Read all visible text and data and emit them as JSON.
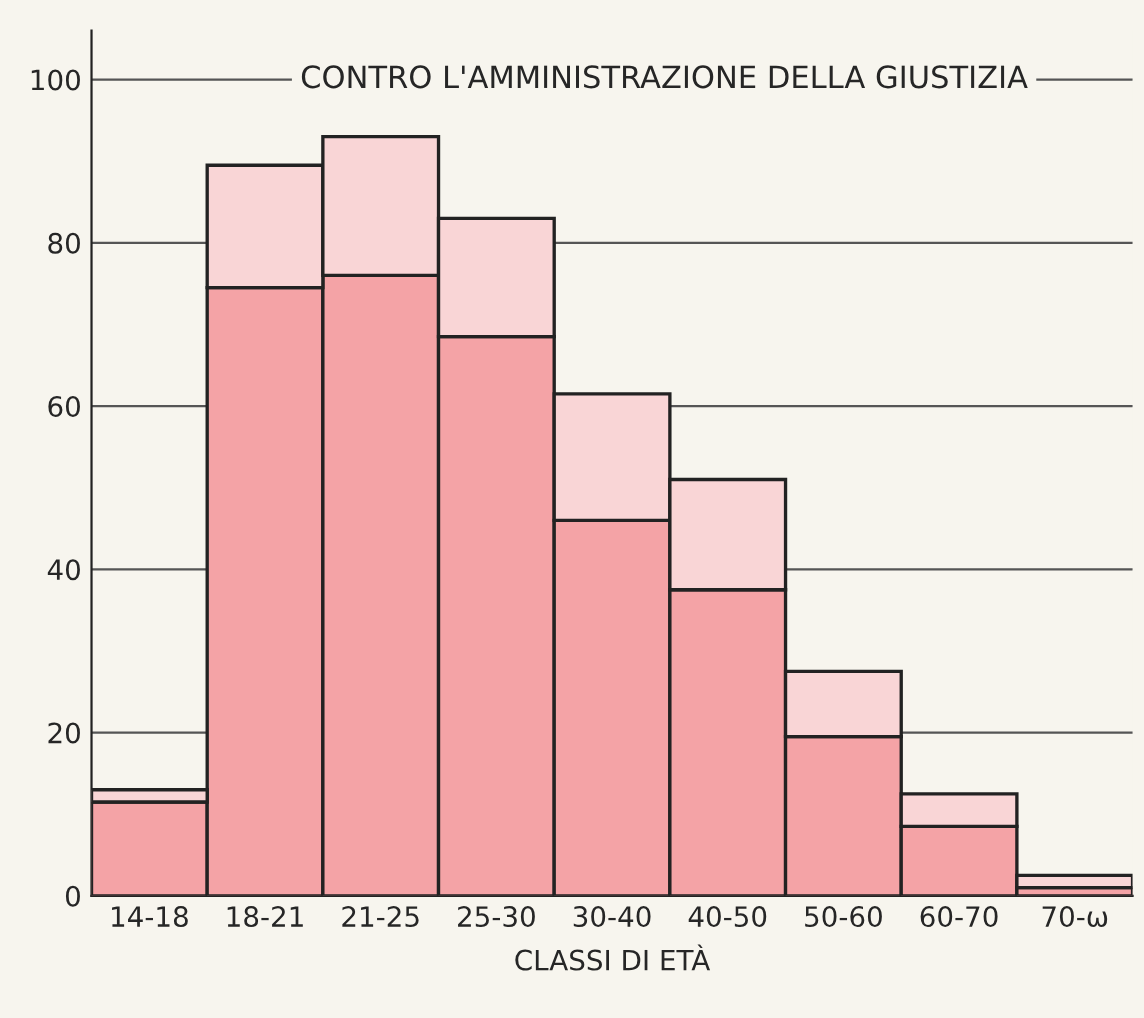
{
  "chart_data": {
    "type": "bar",
    "title": "CONTRO L'AMMINISTRAZIONE DELLA GIUSTIZIA",
    "xlabel": "CLASSI DI ETÀ",
    "categories": [
      "14-18",
      "18-21",
      "21-25",
      "25-30",
      "30-40",
      "40-50",
      "50-60",
      "60-70",
      "70-ω"
    ],
    "stacked": true,
    "series": [
      {
        "color": "#f4a3a6",
        "values": [
          11.5,
          74.5,
          76,
          68.5,
          46,
          37.5,
          19.5,
          8.5,
          1
        ]
      },
      {
        "color": "#f9d5d6",
        "values": [
          1.5,
          15,
          17,
          14.5,
          15.5,
          13.5,
          8,
          4,
          1.5
        ]
      }
    ],
    "ylim": [
      0,
      106
    ],
    "yticks": [
      0,
      20,
      40,
      60,
      80,
      100
    ],
    "grid": "y"
  }
}
